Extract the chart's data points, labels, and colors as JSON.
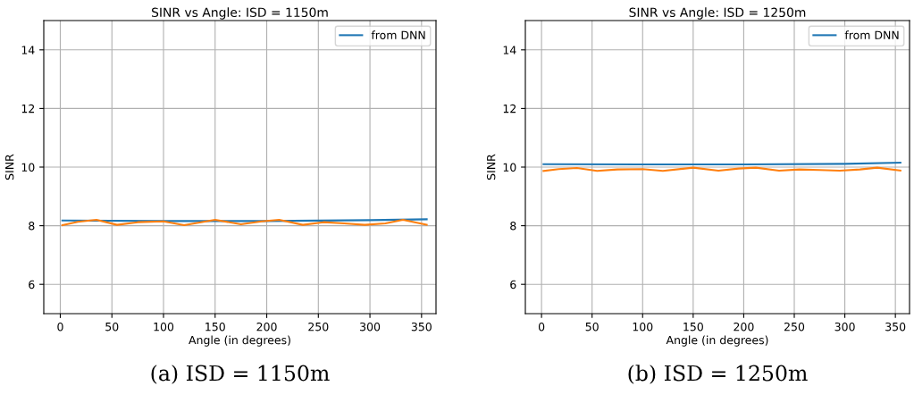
{
  "chart_data": [
    {
      "type": "line",
      "title": "SINR vs Angle: ISD = 1150m",
      "xlabel": "Angle (in degrees)",
      "ylabel": "SINR",
      "xlim": [
        -16,
        364
      ],
      "ylim": [
        5,
        15
      ],
      "xticks": [
        0,
        50,
        100,
        150,
        200,
        250,
        300,
        350
      ],
      "yticks": [
        6,
        8,
        10,
        12,
        14
      ],
      "grid": true,
      "legend": "top right",
      "series": [
        {
          "name": "from DNN",
          "color": "#1f77b4",
          "x": [
            2,
            100,
            200,
            300,
            355
          ],
          "values": [
            8.18,
            8.16,
            8.16,
            8.19,
            8.22
          ]
        },
        {
          "color": "#ff7f0e",
          "x": [
            2,
            17,
            35,
            55,
            75,
            100,
            120,
            150,
            175,
            195,
            212,
            235,
            255,
            275,
            295,
            315,
            332,
            355
          ],
          "values": [
            8.02,
            8.13,
            8.2,
            8.03,
            8.12,
            8.15,
            8.02,
            8.2,
            8.05,
            8.15,
            8.2,
            8.03,
            8.12,
            8.08,
            8.03,
            8.08,
            8.2,
            8.03
          ]
        }
      ],
      "annotations": [
        "(a) ISD = 1150m"
      ]
    },
    {
      "type": "line",
      "title": "SINR vs Angle: ISD = 1250m",
      "xlabel": "Angle (in degrees)",
      "ylabel": "SINR",
      "xlim": [
        -16,
        364
      ],
      "ylim": [
        5,
        15
      ],
      "xticks": [
        0,
        50,
        100,
        150,
        200,
        250,
        300,
        350
      ],
      "yticks": [
        6,
        8,
        10,
        12,
        14
      ],
      "grid": true,
      "legend": "top right",
      "series": [
        {
          "name": "from DNN",
          "color": "#1f77b4",
          "x": [
            2,
            100,
            200,
            300,
            355
          ],
          "values": [
            10.1,
            10.09,
            10.09,
            10.11,
            10.15
          ]
        },
        {
          "color": "#ff7f0e",
          "x": [
            2,
            17,
            35,
            55,
            75,
            100,
            120,
            150,
            175,
            195,
            212,
            235,
            255,
            275,
            295,
            315,
            332,
            355
          ],
          "values": [
            9.87,
            9.93,
            9.97,
            9.87,
            9.92,
            9.93,
            9.87,
            9.98,
            9.88,
            9.95,
            9.98,
            9.88,
            9.92,
            9.9,
            9.88,
            9.92,
            9.98,
            9.88
          ]
        }
      ],
      "annotations": [
        "(b) ISD = 1250m"
      ]
    }
  ]
}
